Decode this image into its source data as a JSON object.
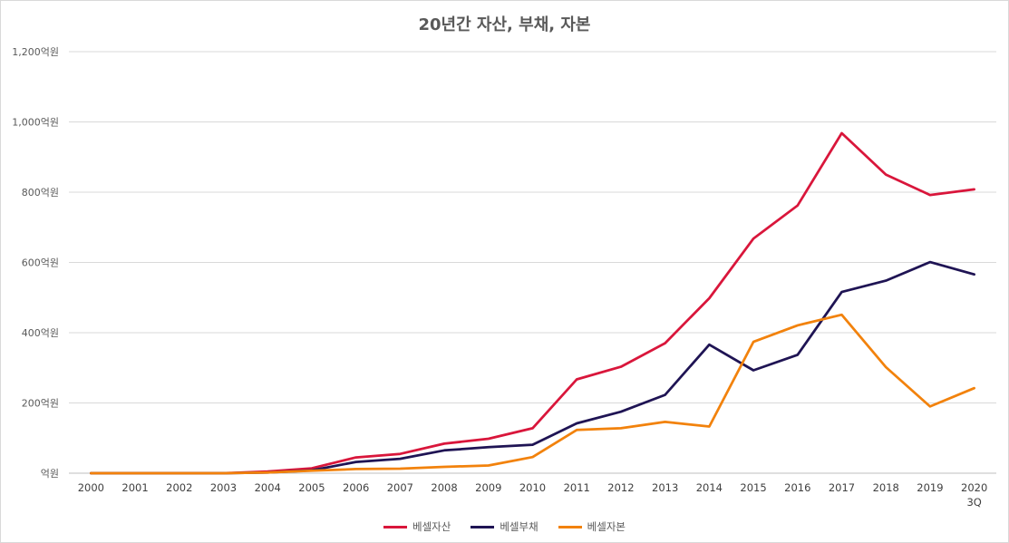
{
  "chart_data": {
    "type": "line",
    "title": "20년간 자산, 부채, 자본",
    "xlabel": "",
    "ylabel": "",
    "categories": [
      "2000",
      "2001",
      "2002",
      "2003",
      "2004",
      "2005",
      "2006",
      "2007",
      "2008",
      "2009",
      "2010",
      "2011",
      "2012",
      "2013",
      "2014",
      "2015",
      "2016",
      "2017",
      "2018",
      "2019",
      "2020"
    ],
    "category_sublabels": {
      "2020": "3Q"
    },
    "ylim": [
      0,
      1200
    ],
    "yticks": [
      0,
      200,
      400,
      600,
      800,
      1000,
      1200
    ],
    "ytick_labels": [
      "억원",
      "200억원",
      "400억원",
      "600억원",
      "800억원",
      "1,000억원",
      "1,200억원"
    ],
    "grid": true,
    "legend_position": "bottom",
    "series": [
      {
        "name": "베셀자산",
        "color": "#d9163b",
        "values": [
          0,
          0,
          0,
          0,
          5,
          14,
          45,
          55,
          84,
          98,
          128,
          267,
          303,
          370,
          498,
          668,
          762,
          968,
          850,
          792,
          808
        ]
      },
      {
        "name": "베셀부채",
        "color": "#1f1454",
        "values": [
          0,
          0,
          0,
          0,
          2,
          8,
          32,
          41,
          65,
          74,
          81,
          142,
          175,
          223,
          366,
          293,
          337,
          516,
          548,
          601,
          566
        ]
      },
      {
        "name": "베셀자본",
        "color": "#f2820c",
        "values": [
          0,
          0,
          0,
          0,
          2,
          7,
          12,
          13,
          18,
          22,
          46,
          123,
          128,
          146,
          133,
          374,
          421,
          451,
          302,
          190,
          242
        ]
      }
    ]
  }
}
